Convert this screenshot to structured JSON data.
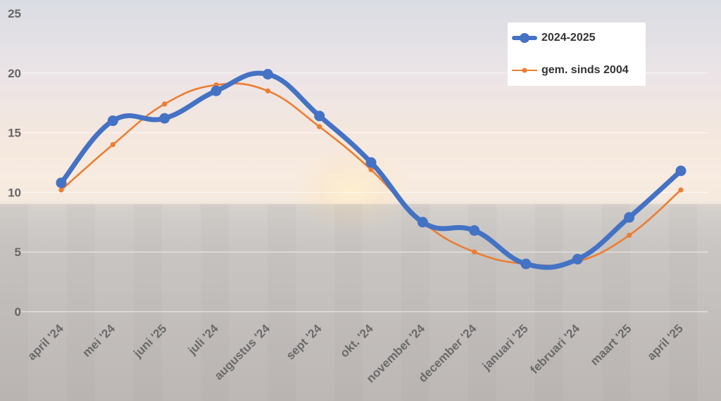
{
  "chart_data": {
    "type": "line",
    "categories": [
      "april '24",
      "mei '24",
      "juni '25",
      "juli '24",
      "augustus '24",
      "sept '24",
      "okt. '24",
      "november '24",
      "december '24",
      "januari '25",
      "februari '24",
      "maart '25",
      "april '25"
    ],
    "ylim": [
      0,
      25
    ],
    "yticks": [
      0,
      5,
      10,
      15,
      20,
      25
    ],
    "grid": true,
    "legend_position": "top-right",
    "series": [
      {
        "name": "2024-2025",
        "color": "#4472C4",
        "values": [
          10.8,
          16.0,
          16.2,
          18.5,
          19.9,
          16.4,
          12.5,
          7.5,
          6.8,
          4.0,
          4.4,
          7.9,
          11.8
        ]
      },
      {
        "name": "gem. sinds 2004",
        "color": "#ED7D31",
        "values": [
          10.2,
          14.0,
          17.4,
          19.0,
          18.5,
          15.5,
          11.9,
          7.5,
          5.0,
          4.0,
          4.2,
          6.4,
          10.2
        ]
      }
    ]
  }
}
